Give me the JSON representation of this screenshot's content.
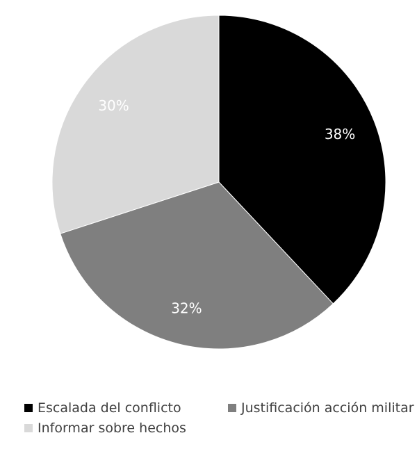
{
  "chart_data": {
    "type": "pie",
    "title": "",
    "categories": [
      "Escalada del conflicto",
      "Justificación acción militar",
      "Informar sobre hechos"
    ],
    "values": [
      38,
      32,
      30
    ],
    "data_labels": [
      "38%",
      "32%",
      "30%"
    ],
    "colors": [
      "#000000",
      "#7f7f7f",
      "#d9d9d9"
    ],
    "label_color": "#ffffff",
    "start_angle": "12 o'clock, clockwise",
    "legend_position": "bottom"
  }
}
